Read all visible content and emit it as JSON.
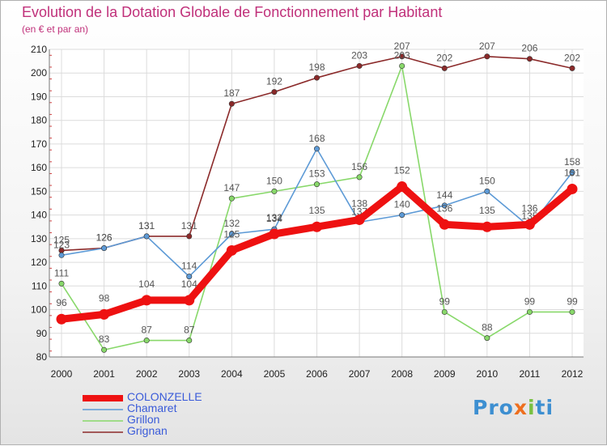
{
  "title": "Evolution de la Dotation Globale de Fonctionnement par Habitant",
  "subtitle": "(en € et par an)",
  "chart_data": {
    "type": "line",
    "title": "Evolution de la Dotation Globale de Fonctionnement par Habitant",
    "ylabel": "(en € et par an)",
    "xlabel": "",
    "categories": [
      "2000",
      "2001",
      "2002",
      "2003",
      "2004",
      "2005",
      "2006",
      "2007",
      "2008",
      "2009",
      "2010",
      "2011",
      "2012"
    ],
    "ylim": [
      80,
      210
    ],
    "yticks": [
      80,
      90,
      100,
      110,
      120,
      130,
      140,
      150,
      160,
      170,
      180,
      190,
      200,
      210
    ],
    "grid": true,
    "legend_position": "bottom-left",
    "series": [
      {
        "name": "Grignan",
        "color": "#8b2a2a",
        "values": [
          125,
          126,
          131,
          131,
          187,
          192,
          198,
          203,
          207,
          202,
          207,
          206,
          202
        ]
      },
      {
        "name": "Grillon",
        "color": "#88d86a",
        "values": [
          111,
          83,
          87,
          87,
          147,
          150,
          153,
          156,
          203,
          99,
          88,
          99,
          99
        ]
      },
      {
        "name": "Chamaret",
        "color": "#5d9ad6",
        "values": [
          123,
          126,
          131,
          114,
          132,
          134,
          168,
          137,
          140,
          144,
          150,
          135,
          158
        ]
      },
      {
        "name": "COLONZELLE",
        "color": "#ee1111",
        "values": [
          96,
          98,
          104,
          104,
          125,
          132,
          135,
          138,
          152,
          136,
          135,
          136,
          151
        ]
      }
    ]
  },
  "legend": [
    "COLONZELLE",
    "Chamaret",
    "Grillon",
    "Grignan"
  ],
  "brand": {
    "parts": [
      "Pro",
      "x",
      "i",
      "ti"
    ],
    "colors": [
      "#3d8fd1",
      "#ee6f1f",
      "#79c142",
      "#3d8fd1"
    ]
  }
}
